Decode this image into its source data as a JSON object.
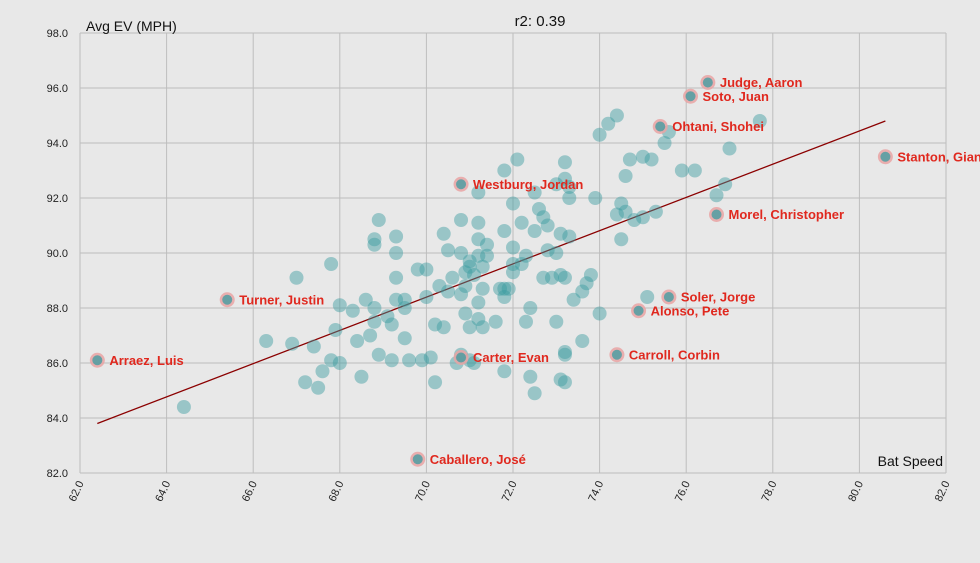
{
  "chart_data": {
    "type": "scatter",
    "title": "r2: 0.39",
    "xlabel": "Bat Speed",
    "ylabel": "Avg EV (MPH)",
    "xlim": [
      62,
      82
    ],
    "ylim": [
      82,
      98
    ],
    "x_ticks": [
      "62.0",
      "64.0",
      "66.0",
      "68.0",
      "70.0",
      "72.0",
      "74.0",
      "76.0",
      "78.0",
      "80.0",
      "82.0"
    ],
    "y_ticks": [
      "82.0",
      "84.0",
      "86.0",
      "88.0",
      "90.0",
      "92.0",
      "94.0",
      "96.0",
      "98.0"
    ],
    "grid": true,
    "colors": {
      "points": "#3a9ba0",
      "highlight_ring": "#e9a3a3",
      "labels": "#e0281e",
      "trendline": "#8b0000",
      "background": "#e8e8e8",
      "grid": "#bdbdbd"
    },
    "trendline": {
      "x": [
        62.4,
        80.6
      ],
      "y": [
        83.8,
        94.8
      ]
    },
    "highlighted": [
      {
        "name": "Judge, Aaron",
        "x": 76.5,
        "y": 96.2
      },
      {
        "name": "Soto, Juan",
        "x": 76.1,
        "y": 95.7
      },
      {
        "name": "Ohtani, Shohei",
        "x": 75.4,
        "y": 94.6
      },
      {
        "name": "Stanton, Giancarlo",
        "x": 80.6,
        "y": 93.5
      },
      {
        "name": "Westburg, Jordan",
        "x": 70.8,
        "y": 92.5
      },
      {
        "name": "Morel, Christopher",
        "x": 76.7,
        "y": 91.4
      },
      {
        "name": "Soler, Jorge",
        "x": 75.6,
        "y": 88.4
      },
      {
        "name": "Alonso, Pete",
        "x": 74.9,
        "y": 87.9
      },
      {
        "name": "Turner, Justin",
        "x": 65.4,
        "y": 88.3
      },
      {
        "name": "Arraez, Luis",
        "x": 62.4,
        "y": 86.1
      },
      {
        "name": "Carter, Evan",
        "x": 70.8,
        "y": 86.2
      },
      {
        "name": "Carroll, Corbin",
        "x": 74.4,
        "y": 86.3
      },
      {
        "name": "Caballero, José",
        "x": 69.8,
        "y": 82.5
      }
    ],
    "points": [
      [
        64.4,
        84.4
      ],
      [
        66.3,
        86.8
      ],
      [
        66.9,
        86.7
      ],
      [
        67.0,
        89.1
      ],
      [
        67.2,
        85.3
      ],
      [
        67.4,
        86.6
      ],
      [
        67.5,
        85.1
      ],
      [
        67.6,
        85.7
      ],
      [
        67.8,
        86.1
      ],
      [
        67.8,
        89.6
      ],
      [
        67.9,
        87.2
      ],
      [
        68.0,
        86.0
      ],
      [
        68.0,
        88.1
      ],
      [
        68.3,
        87.9
      ],
      [
        68.4,
        86.8
      ],
      [
        68.5,
        85.5
      ],
      [
        68.6,
        88.3
      ],
      [
        68.7,
        87.0
      ],
      [
        68.8,
        87.5
      ],
      [
        68.8,
        88.0
      ],
      [
        68.8,
        90.3
      ],
      [
        68.8,
        90.5
      ],
      [
        68.9,
        86.3
      ],
      [
        68.9,
        91.2
      ],
      [
        69.1,
        87.7
      ],
      [
        69.2,
        86.1
      ],
      [
        69.2,
        87.4
      ],
      [
        69.3,
        88.3
      ],
      [
        69.3,
        89.1
      ],
      [
        69.3,
        90.0
      ],
      [
        69.3,
        90.6
      ],
      [
        69.5,
        86.9
      ],
      [
        69.5,
        88.0
      ],
      [
        69.5,
        88.3
      ],
      [
        69.6,
        86.1
      ],
      [
        69.8,
        89.4
      ],
      [
        69.9,
        86.1
      ],
      [
        70.0,
        88.4
      ],
      [
        70.0,
        89.4
      ],
      [
        70.1,
        86.2
      ],
      [
        70.2,
        85.3
      ],
      [
        70.2,
        87.4
      ],
      [
        70.3,
        88.8
      ],
      [
        70.4,
        87.3
      ],
      [
        70.4,
        90.7
      ],
      [
        70.5,
        88.6
      ],
      [
        70.5,
        90.1
      ],
      [
        70.6,
        89.1
      ],
      [
        70.7,
        86.0
      ],
      [
        70.8,
        86.3
      ],
      [
        70.8,
        88.5
      ],
      [
        70.8,
        90.0
      ],
      [
        70.8,
        91.2
      ],
      [
        70.9,
        87.8
      ],
      [
        70.9,
        88.8
      ],
      [
        70.9,
        89.3
      ],
      [
        71.0,
        86.1
      ],
      [
        71.0,
        87.3
      ],
      [
        71.0,
        89.5
      ],
      [
        71.0,
        89.7
      ],
      [
        71.1,
        86.0
      ],
      [
        71.1,
        89.2
      ],
      [
        71.2,
        87.6
      ],
      [
        71.2,
        88.2
      ],
      [
        71.2,
        89.9
      ],
      [
        71.2,
        90.5
      ],
      [
        71.2,
        91.1
      ],
      [
        71.2,
        92.2
      ],
      [
        71.3,
        87.3
      ],
      [
        71.3,
        88.7
      ],
      [
        71.3,
        89.5
      ],
      [
        71.4,
        89.9
      ],
      [
        71.4,
        90.3
      ],
      [
        71.6,
        87.5
      ],
      [
        71.7,
        88.7
      ],
      [
        71.8,
        85.7
      ],
      [
        71.8,
        88.4
      ],
      [
        71.8,
        88.7
      ],
      [
        71.8,
        90.8
      ],
      [
        71.8,
        93.0
      ],
      [
        71.9,
        88.7
      ],
      [
        72.0,
        89.3
      ],
      [
        72.0,
        89.6
      ],
      [
        72.0,
        90.2
      ],
      [
        72.0,
        91.8
      ],
      [
        72.1,
        93.4
      ],
      [
        72.2,
        89.6
      ],
      [
        72.2,
        91.1
      ],
      [
        72.3,
        87.5
      ],
      [
        72.3,
        89.9
      ],
      [
        72.4,
        85.5
      ],
      [
        72.4,
        88.0
      ],
      [
        72.5,
        84.9
      ],
      [
        72.5,
        90.8
      ],
      [
        72.5,
        92.2
      ],
      [
        72.6,
        91.6
      ],
      [
        72.7,
        89.1
      ],
      [
        72.7,
        91.3
      ],
      [
        72.8,
        90.1
      ],
      [
        72.8,
        91.0
      ],
      [
        72.9,
        89.1
      ],
      [
        73.0,
        87.5
      ],
      [
        73.0,
        90.0
      ],
      [
        73.0,
        92.5
      ],
      [
        73.1,
        85.4
      ],
      [
        73.1,
        89.2
      ],
      [
        73.1,
        90.7
      ],
      [
        73.2,
        85.3
      ],
      [
        73.2,
        86.3
      ],
      [
        73.2,
        86.4
      ],
      [
        73.2,
        89.1
      ],
      [
        73.2,
        92.7
      ],
      [
        73.2,
        93.3
      ],
      [
        73.3,
        90.6
      ],
      [
        73.3,
        92.0
      ],
      [
        73.3,
        92.4
      ],
      [
        73.4,
        88.3
      ],
      [
        73.6,
        86.8
      ],
      [
        73.6,
        88.6
      ],
      [
        73.7,
        88.9
      ],
      [
        73.8,
        89.2
      ],
      [
        73.9,
        92.0
      ],
      [
        74.0,
        87.8
      ],
      [
        74.0,
        94.3
      ],
      [
        74.2,
        94.7
      ],
      [
        74.4,
        95.0
      ],
      [
        74.4,
        91.4
      ],
      [
        74.5,
        90.5
      ],
      [
        74.5,
        91.8
      ],
      [
        74.6,
        91.5
      ],
      [
        74.6,
        92.8
      ],
      [
        74.7,
        93.4
      ],
      [
        74.8,
        91.2
      ],
      [
        75.0,
        91.3
      ],
      [
        75.0,
        93.5
      ],
      [
        75.1,
        88.4
      ],
      [
        75.2,
        93.4
      ],
      [
        75.3,
        91.5
      ],
      [
        75.5,
        94.0
      ],
      [
        75.6,
        94.4
      ],
      [
        75.9,
        93.0
      ],
      [
        76.2,
        93.0
      ],
      [
        76.7,
        92.1
      ],
      [
        76.9,
        92.5
      ],
      [
        77.0,
        93.8
      ],
      [
        77.7,
        94.8
      ]
    ]
  }
}
